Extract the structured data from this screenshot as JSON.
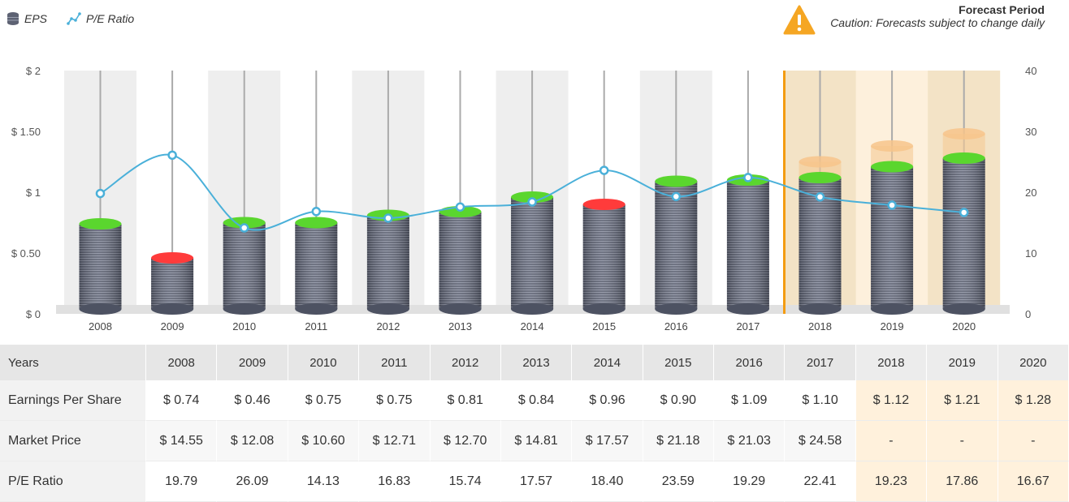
{
  "legend": {
    "eps_label": "EPS",
    "pe_label": "P/E Ratio"
  },
  "forecast": {
    "title": "Forecast Period",
    "caution": "Caution: Forecasts subject to change daily"
  },
  "colors": {
    "eps_positive_top": "#5ad62e",
    "eps_negative_top": "#ff3b3b",
    "coin": "#5d6273",
    "pe_line": "#4ab0d9",
    "forecast_bg": "#f3e3c6",
    "forecast_line": "#f39c12"
  },
  "chart_data": {
    "type": "bar",
    "categories": [
      "2008",
      "2009",
      "2010",
      "2011",
      "2012",
      "2013",
      "2014",
      "2015",
      "2016",
      "2017",
      "2018",
      "2019",
      "2020"
    ],
    "forecast_start_index": 10,
    "series": [
      {
        "name": "EPS",
        "axis": "left",
        "values": [
          0.74,
          0.46,
          0.75,
          0.75,
          0.81,
          0.84,
          0.96,
          0.9,
          1.09,
          1.1,
          1.12,
          1.21,
          1.28
        ],
        "decline": [
          false,
          true,
          false,
          false,
          false,
          false,
          false,
          true,
          false,
          false,
          false,
          false,
          false
        ]
      },
      {
        "name": "P/E Ratio",
        "axis": "right",
        "type": "line",
        "values": [
          19.79,
          26.09,
          14.13,
          16.83,
          15.74,
          17.57,
          18.4,
          23.59,
          19.29,
          22.41,
          19.23,
          17.86,
          16.67
        ]
      }
    ],
    "forecast_range_high": [
      null,
      null,
      null,
      null,
      null,
      null,
      null,
      null,
      null,
      null,
      1.25,
      1.38,
      1.48
    ],
    "y_left": {
      "min": 0,
      "max": 2,
      "ticks": [
        0,
        0.5,
        1,
        1.5,
        2
      ],
      "tick_labels": [
        "$ 0",
        "$ 0.50",
        "$ 1",
        "$ 1.50",
        "$ 2"
      ]
    },
    "y_right": {
      "min": 0,
      "max": 40,
      "ticks": [
        0,
        10,
        20,
        30,
        40
      ],
      "tick_labels": [
        "0",
        "10",
        "20",
        "30",
        "40"
      ]
    }
  },
  "table": {
    "header_label": "Years",
    "years": [
      "2008",
      "2009",
      "2010",
      "2011",
      "2012",
      "2013",
      "2014",
      "2015",
      "2016",
      "2017",
      "2018",
      "2019",
      "2020"
    ],
    "rows": [
      {
        "label": "Earnings Per Share",
        "cells": [
          "$ 0.74",
          "$ 0.46",
          "$ 0.75",
          "$ 0.75",
          "$ 0.81",
          "$ 0.84",
          "$ 0.96",
          "$ 0.90",
          "$ 1.09",
          "$ 1.10",
          "$ 1.12",
          "$ 1.21",
          "$ 1.28"
        ]
      },
      {
        "label": "Market Price",
        "cells": [
          "$ 14.55",
          "$ 12.08",
          "$ 10.60",
          "$ 12.71",
          "$ 12.70",
          "$ 14.81",
          "$ 17.57",
          "$ 21.18",
          "$ 21.03",
          "$ 24.58",
          "-",
          "-",
          "-"
        ]
      },
      {
        "label": "P/E Ratio",
        "cells": [
          "19.79",
          "26.09",
          "14.13",
          "16.83",
          "15.74",
          "17.57",
          "18.40",
          "23.59",
          "19.29",
          "22.41",
          "19.23",
          "17.86",
          "16.67"
        ]
      }
    ]
  }
}
